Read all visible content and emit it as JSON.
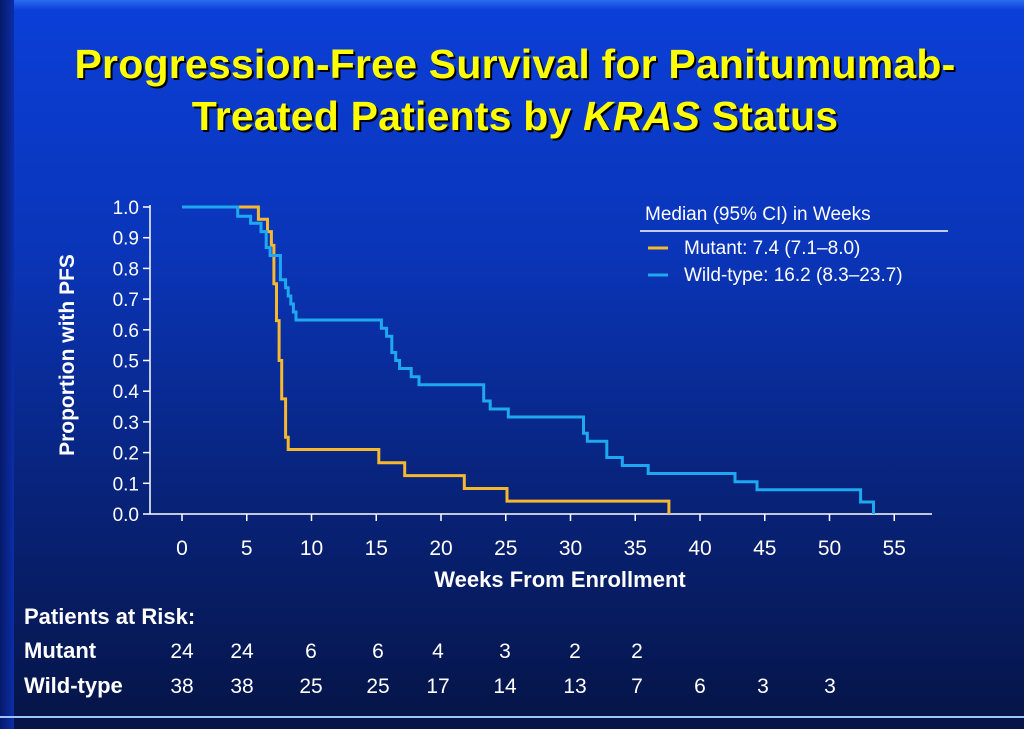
{
  "title": {
    "line1": "Progression-Free Survival for Panitumumab-",
    "line2_pre": "Treated Patients by ",
    "line2_italic": "KRAS",
    "line2_post": " Status"
  },
  "chart_data": {
    "type": "line",
    "title": "Progression-Free Survival for Panitumumab-Treated Patients by KRAS Status",
    "xlabel": "Weeks From Enrollment",
    "ylabel": "Proportion with PFS",
    "xlim": [
      0,
      55
    ],
    "ylim": [
      0,
      1.0
    ],
    "x_ticks": [
      "0",
      "5",
      "10",
      "15",
      "20",
      "25",
      "30",
      "35",
      "40",
      "45",
      "50",
      "55"
    ],
    "y_ticks": [
      "0.0",
      "0.1",
      "0.2",
      "0.3",
      "0.4",
      "0.5",
      "0.6",
      "0.7",
      "0.8",
      "0.9",
      "1.0"
    ],
    "grid": false,
    "legend_title": "Median (95% CI) in Weeks",
    "legend_position": "top-right",
    "series": [
      {
        "name": "Mutant: 7.4 (7.1–8.0)",
        "color": "#f5b82e",
        "step": true,
        "points": [
          [
            0,
            1.0
          ],
          [
            5.9,
            1.0
          ],
          [
            5.9,
            0.96
          ],
          [
            6.6,
            0.96
          ],
          [
            6.6,
            0.92
          ],
          [
            6.9,
            0.92
          ],
          [
            6.9,
            0.875
          ],
          [
            7.1,
            0.875
          ],
          [
            7.1,
            0.75
          ],
          [
            7.3,
            0.75
          ],
          [
            7.3,
            0.63
          ],
          [
            7.5,
            0.63
          ],
          [
            7.5,
            0.5
          ],
          [
            7.7,
            0.5
          ],
          [
            7.7,
            0.375
          ],
          [
            8.0,
            0.375
          ],
          [
            8.0,
            0.25
          ],
          [
            8.2,
            0.25
          ],
          [
            8.2,
            0.21
          ],
          [
            15.2,
            0.21
          ],
          [
            15.2,
            0.167
          ],
          [
            17.2,
            0.167
          ],
          [
            17.2,
            0.125
          ],
          [
            21.8,
            0.125
          ],
          [
            21.8,
            0.083
          ],
          [
            25.1,
            0.083
          ],
          [
            25.1,
            0.042
          ],
          [
            37.6,
            0.042
          ],
          [
            37.6,
            0.0
          ]
        ]
      },
      {
        "name": "Wild-type: 16.2 (8.3–23.7)",
        "color": "#1ea8f0",
        "step": true,
        "points": [
          [
            0,
            1.0
          ],
          [
            4.3,
            1.0
          ],
          [
            4.3,
            0.97
          ],
          [
            5.3,
            0.97
          ],
          [
            5.3,
            0.947
          ],
          [
            6.1,
            0.947
          ],
          [
            6.1,
            0.92
          ],
          [
            6.5,
            0.92
          ],
          [
            6.5,
            0.868
          ],
          [
            6.8,
            0.868
          ],
          [
            6.8,
            0.842
          ],
          [
            7.6,
            0.842
          ],
          [
            7.6,
            0.763
          ],
          [
            8.0,
            0.763
          ],
          [
            8.0,
            0.737
          ],
          [
            8.2,
            0.737
          ],
          [
            8.2,
            0.71
          ],
          [
            8.4,
            0.71
          ],
          [
            8.4,
            0.684
          ],
          [
            8.6,
            0.684
          ],
          [
            8.6,
            0.658
          ],
          [
            8.8,
            0.658
          ],
          [
            8.8,
            0.632
          ],
          [
            15.4,
            0.632
          ],
          [
            15.4,
            0.605
          ],
          [
            15.8,
            0.605
          ],
          [
            15.8,
            0.579
          ],
          [
            16.2,
            0.579
          ],
          [
            16.2,
            0.526
          ],
          [
            16.5,
            0.526
          ],
          [
            16.5,
            0.5
          ],
          [
            16.8,
            0.5
          ],
          [
            16.8,
            0.474
          ],
          [
            17.7,
            0.474
          ],
          [
            17.7,
            0.447
          ],
          [
            18.3,
            0.447
          ],
          [
            18.3,
            0.421
          ],
          [
            23.3,
            0.421
          ],
          [
            23.3,
            0.368
          ],
          [
            23.8,
            0.368
          ],
          [
            23.8,
            0.342
          ],
          [
            25.2,
            0.342
          ],
          [
            25.2,
            0.316
          ],
          [
            31.0,
            0.316
          ],
          [
            31.0,
            0.263
          ],
          [
            31.3,
            0.263
          ],
          [
            31.3,
            0.237
          ],
          [
            32.8,
            0.237
          ],
          [
            32.8,
            0.184
          ],
          [
            34.0,
            0.184
          ],
          [
            34.0,
            0.158
          ],
          [
            36.0,
            0.158
          ],
          [
            36.0,
            0.132
          ],
          [
            42.7,
            0.132
          ],
          [
            42.7,
            0.105
          ],
          [
            44.4,
            0.105
          ],
          [
            44.4,
            0.079
          ],
          [
            52.4,
            0.079
          ],
          [
            52.4,
            0.039
          ],
          [
            53.4,
            0.039
          ],
          [
            53.4,
            0.0
          ]
        ]
      }
    ]
  },
  "risk_table": {
    "heading": "Patients at Risk:",
    "rows": [
      {
        "label": "Mutant",
        "values": [
          "24",
          "24",
          "6",
          "6",
          "4",
          "3",
          "2",
          "2"
        ]
      },
      {
        "label": "Wild-type",
        "values": [
          "38",
          "38",
          "25",
          "25",
          "17",
          "14",
          "13",
          "7",
          "6",
          "3",
          "3"
        ]
      }
    ]
  }
}
